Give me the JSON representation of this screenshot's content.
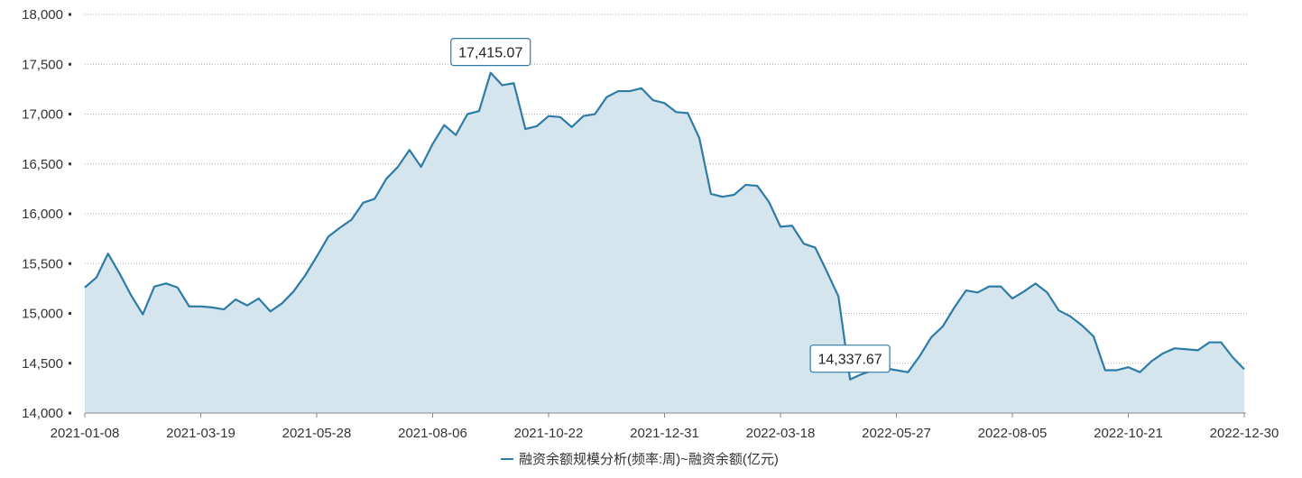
{
  "chart_data": {
    "type": "area",
    "legend_position": "bottom-center",
    "grid": true,
    "ylim": [
      14000,
      18000
    ],
    "yticks": [
      14000,
      14500,
      15000,
      15500,
      16000,
      16500,
      17000,
      17500,
      18000
    ],
    "ytick_labels": [
      "14,000",
      "14,500",
      "15,000",
      "15,500",
      "16,000",
      "16,500",
      "17,000",
      "17,500",
      "18,000"
    ],
    "xtick_labels": [
      "2021-01-08",
      "2021-03-19",
      "2021-05-28",
      "2021-08-06",
      "2021-10-22",
      "2021-12-31",
      "2022-03-18",
      "2022-05-27",
      "2022-08-05",
      "2022-10-21",
      "2022-12-30"
    ],
    "xtick_indices": [
      0,
      10,
      20,
      30,
      40,
      50,
      60,
      70,
      80,
      90,
      100
    ],
    "colors": {
      "line": "#2e7ca6",
      "area": "#d4e5ee",
      "grid": "#aaaaaa"
    },
    "series": [
      {
        "name": "融资余额规模分析(频率:周)~融资余额(亿元)",
        "values": [
          15260,
          15360,
          15600,
          15400,
          15180,
          14990,
          15270,
          15300,
          15260,
          15070,
          15070,
          15060,
          15040,
          15140,
          15080,
          15150,
          15020,
          15100,
          15220,
          15380,
          15570,
          15770,
          15860,
          15940,
          16110,
          16150,
          16350,
          16470,
          16640,
          16470,
          16700,
          16890,
          16790,
          17000,
          17030,
          17415.07,
          17290,
          17310,
          16850,
          16880,
          16980,
          16970,
          16870,
          16980,
          17000,
          17170,
          17230,
          17230,
          17260,
          17140,
          17110,
          17020,
          17010,
          16760,
          16200,
          16170,
          16190,
          16290,
          16280,
          16120,
          15870,
          15880,
          15700,
          15660,
          15420,
          15170,
          14337.67,
          14390,
          14430,
          14450,
          14430,
          14410,
          14570,
          14760,
          14870,
          15060,
          15230,
          15210,
          15270,
          15270,
          15150,
          15220,
          15300,
          15210,
          15030,
          14970,
          14880,
          14770,
          14430,
          14430,
          14460,
          14410,
          14520,
          14600,
          14650,
          14640,
          14630,
          14710,
          14710,
          14560,
          14440
        ]
      }
    ],
    "annotations": [
      {
        "index": 35,
        "label": "17,415.07"
      },
      {
        "index": 66,
        "label": "14,337.67"
      }
    ]
  }
}
